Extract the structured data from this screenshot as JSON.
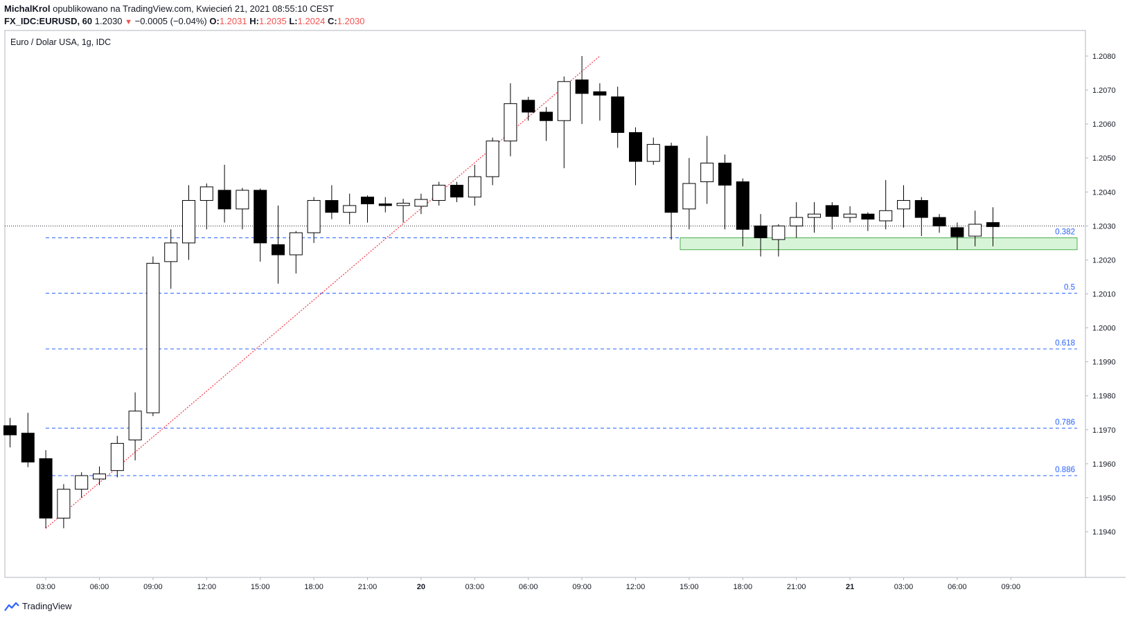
{
  "header": {
    "author": "MichalKrol",
    "published": "opublikowano na TradingView.com, Kwiecień 21, 2021 08:55:10 CEST",
    "symbol": "FX_IDC:EURUSD, 60",
    "last": "1.2030",
    "change": "−0.0005 (−0.04%)",
    "o_label": "O:",
    "o": "1.2031",
    "h_label": "H:",
    "h": "1.2035",
    "l_label": "L:",
    "l": "1.2024",
    "c_label": "C:",
    "c": "1.2030"
  },
  "footer": {
    "brand": "TradingView",
    "logo_icon": "tradingview-logo-icon"
  },
  "colors": {
    "up_body": "#ffffff",
    "down_body": "#000000",
    "wick": "#000000",
    "fib_line": "#2962ff",
    "fib_label": "#2962ff",
    "trendline": "#f23645",
    "zone_fill": "#c8efc8",
    "zone_border": "#4caf50",
    "axis_text": "#131722"
  },
  "chart_data": {
    "type": "candlestick",
    "title": "Euro / Dolar USA, 1g, IDC",
    "ylim": [
      1.1933,
      1.2093
    ],
    "y_ticks": [
      "1.2080",
      "1.2070",
      "1.2060",
      "1.2050",
      "1.2040",
      "1.2030",
      "1.2020",
      "1.2010",
      "1.2000",
      "1.1990",
      "1.1980",
      "1.1970",
      "1.1960",
      "1.1950",
      "1.1940"
    ],
    "x_ticks": [
      {
        "i": 2,
        "label": "03:00"
      },
      {
        "i": 5,
        "label": "06:00"
      },
      {
        "i": 8,
        "label": "09:00"
      },
      {
        "i": 11,
        "label": "12:00"
      },
      {
        "i": 14,
        "label": "15:00"
      },
      {
        "i": 17,
        "label": "18:00"
      },
      {
        "i": 20,
        "label": "21:00"
      },
      {
        "i": 23,
        "label": "20"
      },
      {
        "i": 26,
        "label": "03:00"
      },
      {
        "i": 29,
        "label": "06:00"
      },
      {
        "i": 32,
        "label": "09:00"
      },
      {
        "i": 35,
        "label": "12:00"
      },
      {
        "i": 38,
        "label": "15:00"
      },
      {
        "i": 41,
        "label": "18:00"
      },
      {
        "i": 44,
        "label": "21:00"
      },
      {
        "i": 47,
        "label": "21"
      },
      {
        "i": 50,
        "label": "03:00"
      },
      {
        "i": 53,
        "label": "06:00"
      },
      {
        "i": 56,
        "label": "09:00"
      }
    ],
    "candles": [
      {
        "o": 1.19712,
        "h": 1.19735,
        "l": 1.19648,
        "c": 1.19685
      },
      {
        "o": 1.1969,
        "h": 1.1975,
        "l": 1.1959,
        "c": 1.19605
      },
      {
        "o": 1.19615,
        "h": 1.1964,
        "l": 1.1941,
        "c": 1.1944
      },
      {
        "o": 1.1944,
        "h": 1.1954,
        "l": 1.1941,
        "c": 1.19525
      },
      {
        "o": 1.19525,
        "h": 1.19575,
        "l": 1.195,
        "c": 1.19565
      },
      {
        "o": 1.19555,
        "h": 1.19592,
        "l": 1.19537,
        "c": 1.1957
      },
      {
        "o": 1.1958,
        "h": 1.19682,
        "l": 1.1956,
        "c": 1.1966
      },
      {
        "o": 1.1967,
        "h": 1.1981,
        "l": 1.1961,
        "c": 1.19755
      },
      {
        "o": 1.1975,
        "h": 1.2021,
        "l": 1.1974,
        "c": 1.2019
      },
      {
        "o": 1.20195,
        "h": 1.2029,
        "l": 1.20115,
        "c": 1.2025
      },
      {
        "o": 1.2025,
        "h": 1.2042,
        "l": 1.202,
        "c": 1.20375
      },
      {
        "o": 1.20375,
        "h": 1.20425,
        "l": 1.2029,
        "c": 1.20415
      },
      {
        "o": 1.20405,
        "h": 1.2048,
        "l": 1.2031,
        "c": 1.2035
      },
      {
        "o": 1.2035,
        "h": 1.20412,
        "l": 1.2029,
        "c": 1.20405
      },
      {
        "o": 1.20405,
        "h": 1.2041,
        "l": 1.20195,
        "c": 1.2025
      },
      {
        "o": 1.20245,
        "h": 1.2036,
        "l": 1.2013,
        "c": 1.20215
      },
      {
        "o": 1.20215,
        "h": 1.20285,
        "l": 1.2016,
        "c": 1.2028
      },
      {
        "o": 1.2028,
        "h": 1.20385,
        "l": 1.2025,
        "c": 1.20375
      },
      {
        "o": 1.20375,
        "h": 1.2042,
        "l": 1.2032,
        "c": 1.2034
      },
      {
        "o": 1.2034,
        "h": 1.20395,
        "l": 1.20305,
        "c": 1.2036
      },
      {
        "o": 1.20385,
        "h": 1.2039,
        "l": 1.2031,
        "c": 1.20365
      },
      {
        "o": 1.20365,
        "h": 1.20385,
        "l": 1.2034,
        "c": 1.2036
      },
      {
        "o": 1.2036,
        "h": 1.2038,
        "l": 1.2031,
        "c": 1.20367
      },
      {
        "o": 1.20358,
        "h": 1.20395,
        "l": 1.20335,
        "c": 1.20378
      },
      {
        "o": 1.20375,
        "h": 1.2043,
        "l": 1.2036,
        "c": 1.2042
      },
      {
        "o": 1.2042,
        "h": 1.2043,
        "l": 1.2037,
        "c": 1.20385
      },
      {
        "o": 1.20385,
        "h": 1.2048,
        "l": 1.2036,
        "c": 1.20445
      },
      {
        "o": 1.20445,
        "h": 1.2056,
        "l": 1.2042,
        "c": 1.2055
      },
      {
        "o": 1.2055,
        "h": 1.2072,
        "l": 1.20505,
        "c": 1.2066
      },
      {
        "o": 1.2067,
        "h": 1.2068,
        "l": 1.2061,
        "c": 1.20635
      },
      {
        "o": 1.20635,
        "h": 1.2065,
        "l": 1.2055,
        "c": 1.2061
      },
      {
        "o": 1.2061,
        "h": 1.2074,
        "l": 1.2047,
        "c": 1.20725
      },
      {
        "o": 1.2073,
        "h": 1.208,
        "l": 1.206,
        "c": 1.2069
      },
      {
        "o": 1.20695,
        "h": 1.2072,
        "l": 1.2061,
        "c": 1.20685
      },
      {
        "o": 1.2068,
        "h": 1.2071,
        "l": 1.2053,
        "c": 1.20575
      },
      {
        "o": 1.20575,
        "h": 1.2059,
        "l": 1.2042,
        "c": 1.2049
      },
      {
        "o": 1.2049,
        "h": 1.2056,
        "l": 1.2048,
        "c": 1.2054
      },
      {
        "o": 1.20535,
        "h": 1.20545,
        "l": 1.2026,
        "c": 1.2034
      },
      {
        "o": 1.2035,
        "h": 1.205,
        "l": 1.2029,
        "c": 1.20425
      },
      {
        "o": 1.2043,
        "h": 1.20565,
        "l": 1.20365,
        "c": 1.20485
      },
      {
        "o": 1.20485,
        "h": 1.2051,
        "l": 1.2029,
        "c": 1.2042
      },
      {
        "o": 1.2043,
        "h": 1.2044,
        "l": 1.2024,
        "c": 1.2029
      },
      {
        "o": 1.203,
        "h": 1.20335,
        "l": 1.2021,
        "c": 1.20265
      },
      {
        "o": 1.2026,
        "h": 1.20305,
        "l": 1.2021,
        "c": 1.203
      },
      {
        "o": 1.203,
        "h": 1.2037,
        "l": 1.20265,
        "c": 1.20325
      },
      {
        "o": 1.20325,
        "h": 1.2037,
        "l": 1.2028,
        "c": 1.20335
      },
      {
        "o": 1.2036,
        "h": 1.2037,
        "l": 1.2029,
        "c": 1.20328
      },
      {
        "o": 1.20325,
        "h": 1.20358,
        "l": 1.2031,
        "c": 1.20335
      },
      {
        "o": 1.20335,
        "h": 1.2034,
        "l": 1.20285,
        "c": 1.2032
      },
      {
        "o": 1.20315,
        "h": 1.20435,
        "l": 1.2029,
        "c": 1.20345
      },
      {
        "o": 1.2035,
        "h": 1.2042,
        "l": 1.20295,
        "c": 1.20375
      },
      {
        "o": 1.20375,
        "h": 1.20385,
        "l": 1.2027,
        "c": 1.20325
      },
      {
        "o": 1.20325,
        "h": 1.20335,
        "l": 1.2028,
        "c": 1.203
      },
      {
        "o": 1.20295,
        "h": 1.2031,
        "l": 1.2023,
        "c": 1.20268
      },
      {
        "o": 1.2027,
        "h": 1.20345,
        "l": 1.2024,
        "c": 1.20305
      },
      {
        "o": 1.2031,
        "h": 1.20355,
        "l": 1.2024,
        "c": 1.20298
      }
    ],
    "last_price": 1.203,
    "fib_levels": [
      {
        "level": "0.382",
        "price": 1.20265
      },
      {
        "level": "0.5",
        "price": 1.20102
      },
      {
        "level": "0.618",
        "price": 1.19938
      },
      {
        "level": "0.786",
        "price": 1.19705
      },
      {
        "level": "0.886",
        "price": 1.19565
      }
    ],
    "trendline": {
      "from": {
        "i": 2,
        "price": 1.1941
      },
      "to": {
        "i": 33,
        "price": 1.208
      }
    },
    "support_zone": {
      "from_i": 37.5,
      "top": 1.20265,
      "bottom": 1.2023
    }
  }
}
